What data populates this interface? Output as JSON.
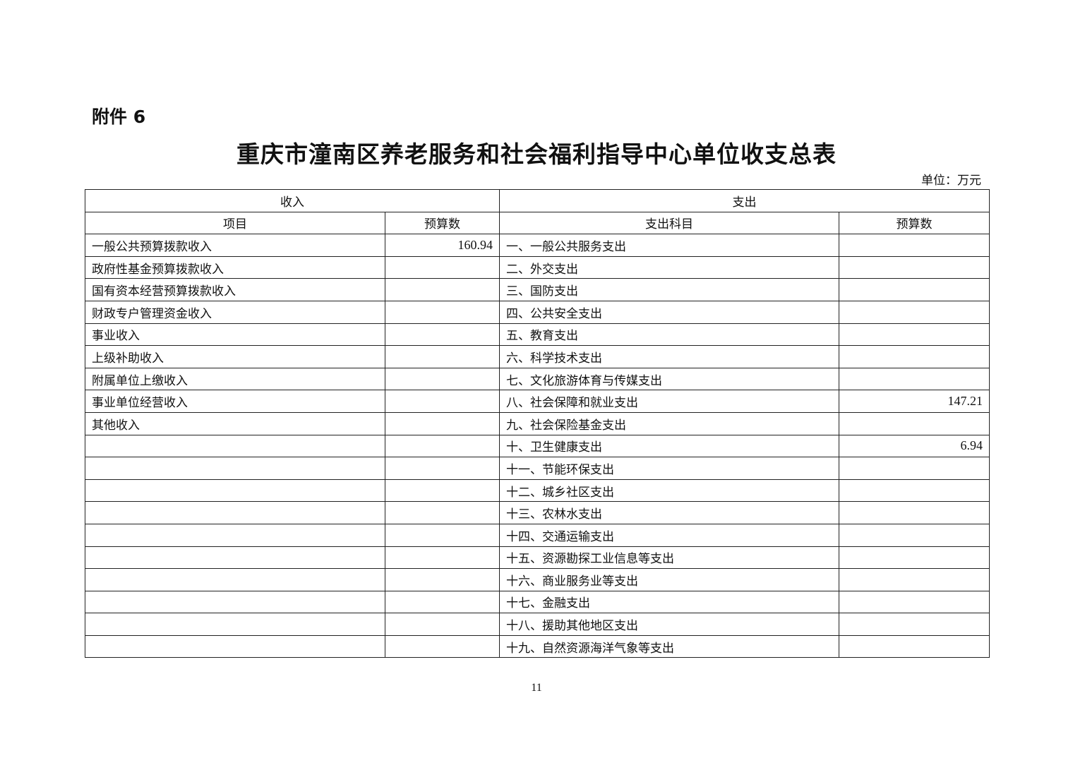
{
  "attachment_label": "附件 6",
  "title": "重庆市潼南区养老服务和社会福利指导中心单位收支总表",
  "unit": "单位：万元",
  "table": {
    "group_headers": {
      "income": "收入",
      "expense": "支出"
    },
    "column_headers": [
      "项目",
      "预算数",
      "支出科目",
      "预算数"
    ],
    "rows": [
      {
        "income_item": "一般公共预算拨款收入",
        "income_amount": "160.94",
        "expense_item": "一、一般公共服务支出",
        "expense_amount": ""
      },
      {
        "income_item": "政府性基金预算拨款收入",
        "income_amount": "",
        "expense_item": "二、外交支出",
        "expense_amount": ""
      },
      {
        "income_item": "国有资本经营预算拨款收入",
        "income_amount": "",
        "expense_item": "三、国防支出",
        "expense_amount": ""
      },
      {
        "income_item": "财政专户管理资金收入",
        "income_amount": "",
        "expense_item": "四、公共安全支出",
        "expense_amount": ""
      },
      {
        "income_item": "事业收入",
        "income_amount": "",
        "expense_item": "五、教育支出",
        "expense_amount": ""
      },
      {
        "income_item": "上级补助收入",
        "income_amount": "",
        "expense_item": "六、科学技术支出",
        "expense_amount": ""
      },
      {
        "income_item": "附属单位上缴收入",
        "income_amount": "",
        "expense_item": "七、文化旅游体育与传媒支出",
        "expense_amount": ""
      },
      {
        "income_item": "事业单位经营收入",
        "income_amount": "",
        "expense_item": "八、社会保障和就业支出",
        "expense_amount": "147.21"
      },
      {
        "income_item": "其他收入",
        "income_amount": "",
        "expense_item": "九、社会保险基金支出",
        "expense_amount": ""
      },
      {
        "income_item": "",
        "income_amount": "",
        "expense_item": "十、卫生健康支出",
        "expense_amount": "6.94"
      },
      {
        "income_item": "",
        "income_amount": "",
        "expense_item": "十一、节能环保支出",
        "expense_amount": ""
      },
      {
        "income_item": "",
        "income_amount": "",
        "expense_item": "十二、城乡社区支出",
        "expense_amount": ""
      },
      {
        "income_item": "",
        "income_amount": "",
        "expense_item": "十三、农林水支出",
        "expense_amount": ""
      },
      {
        "income_item": "",
        "income_amount": "",
        "expense_item": "十四、交通运输支出",
        "expense_amount": ""
      },
      {
        "income_item": "",
        "income_amount": "",
        "expense_item": "十五、资源勘探工业信息等支出",
        "expense_amount": ""
      },
      {
        "income_item": "",
        "income_amount": "",
        "expense_item": "十六、商业服务业等支出",
        "expense_amount": ""
      },
      {
        "income_item": "",
        "income_amount": "",
        "expense_item": "十七、金融支出",
        "expense_amount": ""
      },
      {
        "income_item": "",
        "income_amount": "",
        "expense_item": "十八、援助其他地区支出",
        "expense_amount": ""
      },
      {
        "income_item": "",
        "income_amount": "",
        "expense_item": "十九、自然资源海洋气象等支出",
        "expense_amount": ""
      }
    ]
  },
  "page_number": "11"
}
